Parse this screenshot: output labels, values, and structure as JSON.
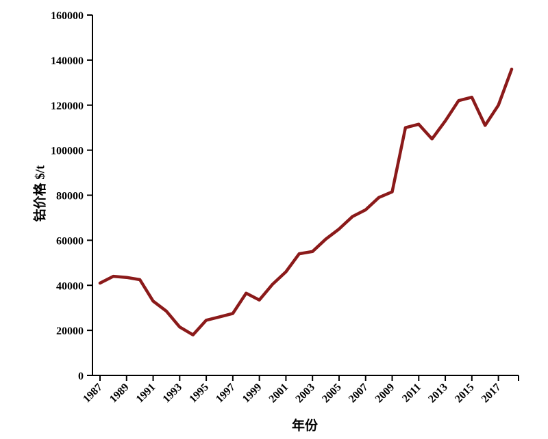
{
  "chart_data": {
    "type": "line",
    "title": "",
    "xlabel": "年份",
    "ylabel": "钴价格 $/t",
    "x": [
      1987,
      1988,
      1989,
      1990,
      1991,
      1992,
      1993,
      1994,
      1995,
      1996,
      1997,
      1998,
      1999,
      2000,
      2001,
      2002,
      2003,
      2004,
      2005,
      2006,
      2007,
      2008,
      2009,
      2010,
      2011,
      2012,
      2013,
      2014,
      2015,
      2016,
      2017,
      2018
    ],
    "values": [
      41000,
      44000,
      43500,
      42500,
      33000,
      28500,
      21500,
      18000,
      24500,
      26000,
      27500,
      36500,
      33500,
      40500,
      46000,
      54000,
      55000,
      60500,
      65000,
      70500,
      73500,
      79000,
      81500,
      110000,
      111500,
      105000,
      113000,
      122000,
      123500,
      111000,
      120000,
      136000
    ],
    "ylim": [
      0,
      160000
    ],
    "ytick_step": 20000,
    "xticks": [
      1987,
      1989,
      1991,
      1993,
      1995,
      1997,
      1999,
      2001,
      2003,
      2005,
      2007,
      2009,
      2011,
      2013,
      2015,
      2017
    ],
    "line_color": "#8b1a1a",
    "axis_color": "#000000",
    "background": "#ffffff",
    "grid": false,
    "legend": "none"
  }
}
